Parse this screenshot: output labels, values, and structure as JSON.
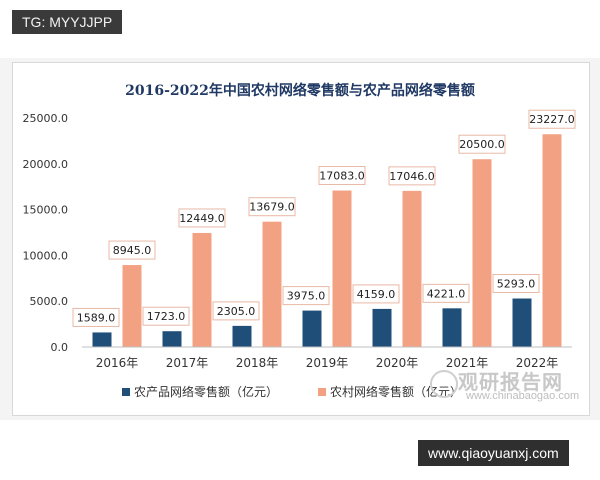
{
  "overlay_tag": "TG: MYYJJPP",
  "site_url": "www.qiaoyuanxj.com",
  "watermark": {
    "main": "观研报告网",
    "sub": "www.chinabaogao.com"
  },
  "colors": {
    "series1": "#1f4e79",
    "series2": "#f3a183",
    "label_border": "#e8b9a6"
  },
  "chart_data": {
    "type": "bar",
    "title": "2016-2022年中国农村网络零售额与农产品网络零售额",
    "categories": [
      "2016年",
      "2017年",
      "2018年",
      "2019年",
      "2020年",
      "2021年",
      "2022年"
    ],
    "series": [
      {
        "name": "农产品网络零售额（亿元）",
        "values": [
          1589.0,
          1723.0,
          2305.0,
          3975.0,
          4159.0,
          4221.0,
          5293.0
        ],
        "labels": [
          "1589.0",
          "1723.0",
          "2305.0",
          "3975.0",
          "4159.0",
          "4221.0",
          "5293.0"
        ]
      },
      {
        "name": "农村网络零售额（亿元）",
        "values": [
          8945.0,
          12449.0,
          13679.0,
          17083.0,
          17046.0,
          20500.0,
          23227.0
        ],
        "labels": [
          "8945.0",
          "12449.0",
          "13679.0",
          "17083.0",
          "17046.0",
          "20500.0",
          "23227.0"
        ]
      }
    ],
    "ylim": [
      0,
      25000
    ],
    "yticks": [
      "0.0",
      "5000.0",
      "10000.0",
      "15000.0",
      "20000.0",
      "25000.0"
    ],
    "ytick_values": [
      0,
      5000,
      10000,
      15000,
      20000,
      25000
    ],
    "grid": false,
    "legend_position": "bottom"
  }
}
